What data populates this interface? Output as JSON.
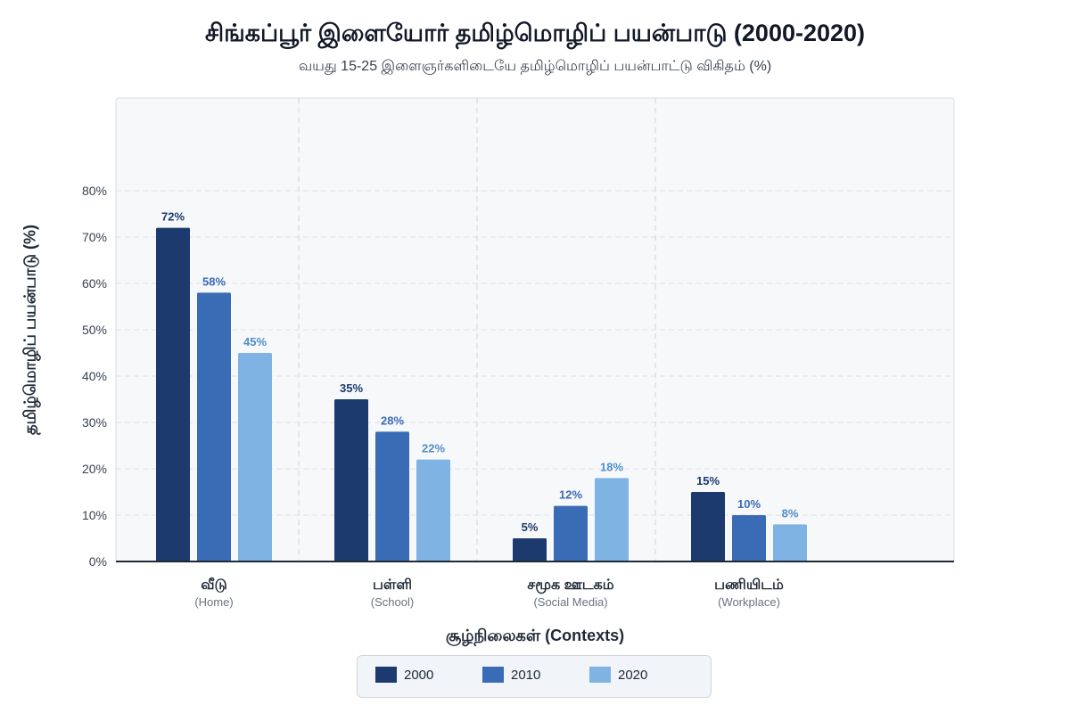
{
  "title": "சிங்கப்பூர் இளையோர் தமிழ்மொழிப் பயன்பாடு (2000-2020)",
  "subtitle": "வயது 15-25 இளைஞர்களிடையே தமிழ்மொழிப் பயன்பாட்டு விகிதம் (%)",
  "chart_data": {
    "type": "bar",
    "title": "சிங்கப்பூர் இளையோர் தமிழ்மொழிப் பயன்பாடு (2000-2020)",
    "subtitle": "வயது 15-25 இளைஞர்களிடையே தமிழ்மொழிப் பயன்பாட்டு விகிதம் (%)",
    "xlabel": "சூழ்நிலைகள் (Contexts)",
    "ylabel": "தமிழ்மொழிப் பயன்பாடு (%)",
    "categories": [
      {
        "name": "வீடு",
        "sub": "(Home)"
      },
      {
        "name": "பள்ளி",
        "sub": "(School)"
      },
      {
        "name": "சமூக ஊடகம்",
        "sub": "(Social Media)"
      },
      {
        "name": "பணியிடம்",
        "sub": "(Workplace)"
      }
    ],
    "series": [
      {
        "name": "2000",
        "color": "#1c3a6e",
        "label_color": "#1c3a6e",
        "values": [
          72,
          35,
          5,
          15
        ]
      },
      {
        "name": "2010",
        "color": "#3a6bb5",
        "label_color": "#3a6bb5",
        "values": [
          58,
          28,
          12,
          10
        ]
      },
      {
        "name": "2020",
        "color": "#7fb3e3",
        "label_color": "#4f8fc9",
        "values": [
          45,
          22,
          18,
          8
        ]
      }
    ],
    "ylim": [
      0,
      80
    ],
    "ymax_visible": 80,
    "yticks": [
      0,
      10,
      20,
      30,
      40,
      50,
      60,
      70,
      80
    ],
    "ytick_suffix": "%",
    "value_suffix": "%",
    "grid": true,
    "legend_position": "bottom-center"
  }
}
